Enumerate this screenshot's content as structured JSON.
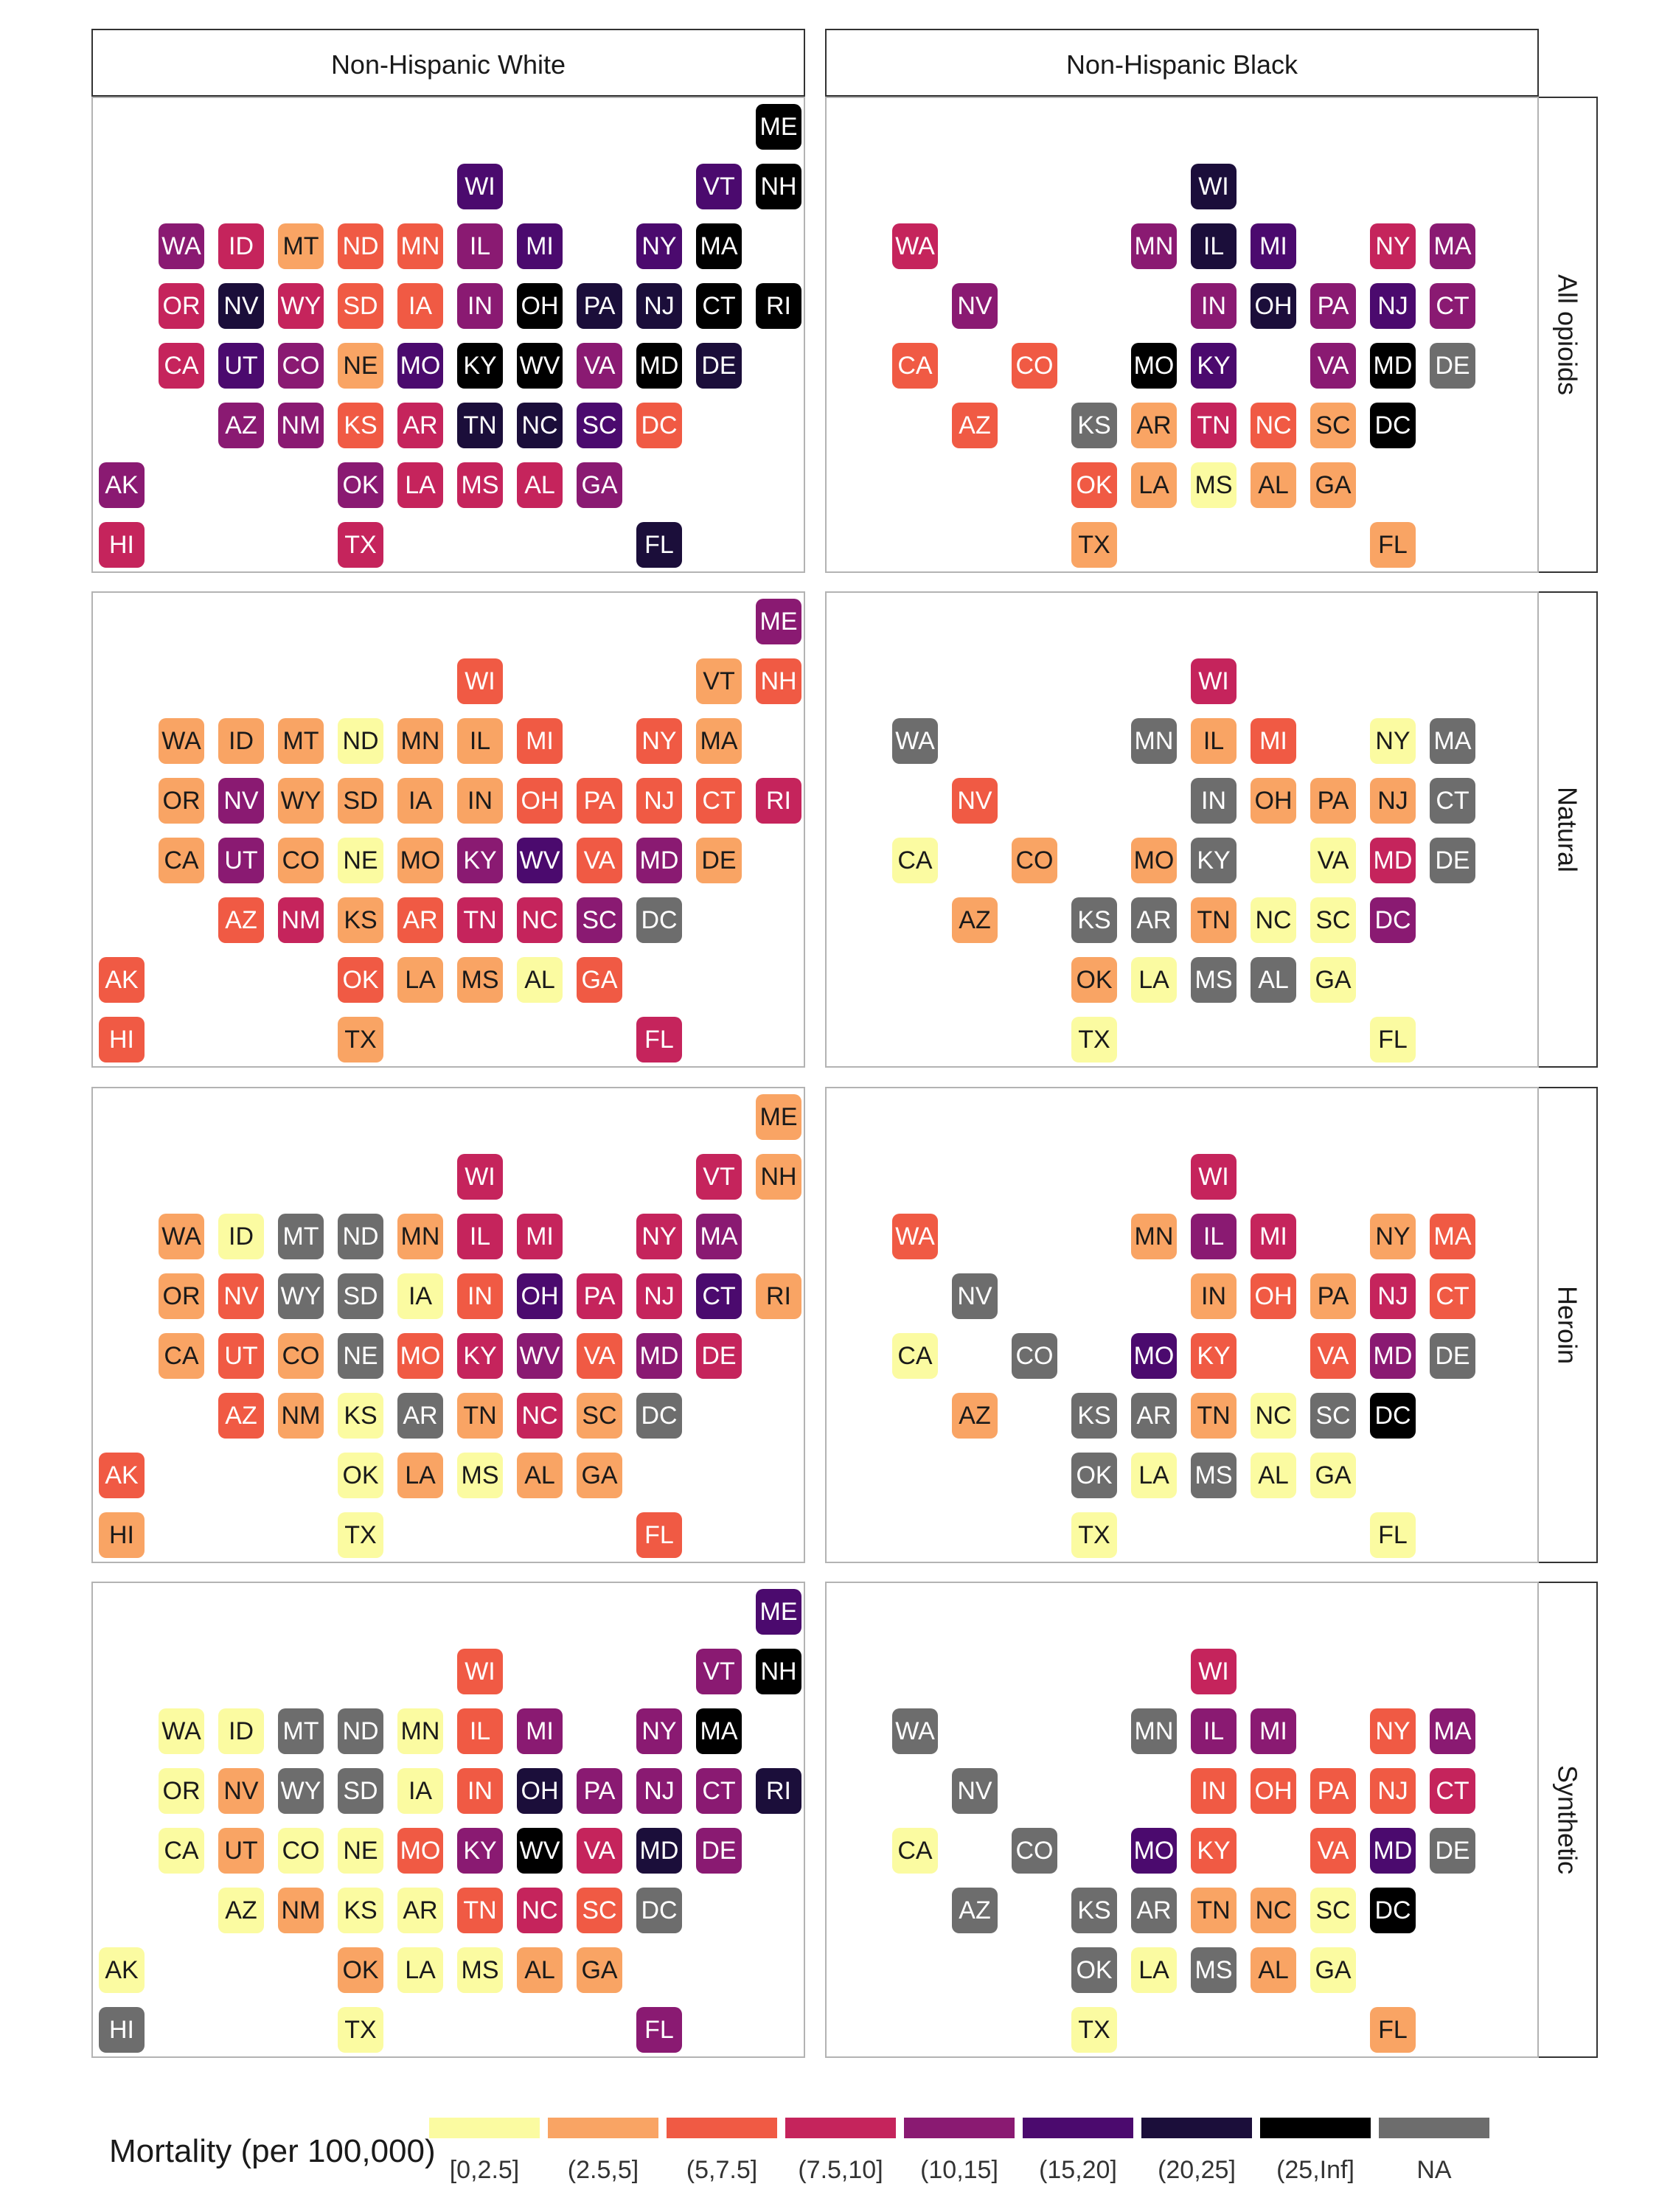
{
  "chart_data": {
    "type": "heatmap",
    "title": "",
    "columns": [
      "Non-Hispanic White",
      "Non-Hispanic Black"
    ],
    "rows": [
      "All opioids",
      "Natural",
      "Heroin",
      "Synthetic"
    ],
    "legend": {
      "title": "Mortality (per 100,000)",
      "placement": "bottom",
      "bins": [
        {
          "label": "[0,2.5]",
          "color": "#FBFBA1"
        },
        {
          "label": "(2.5,5]",
          "color": "#F9A464"
        },
        {
          "label": "(5,7.5]",
          "color": "#F05A44"
        },
        {
          "label": "(7.5,10]",
          "color": "#C5245C"
        },
        {
          "label": "(10,15]",
          "color": "#8A1A72"
        },
        {
          "label": "(15,20]",
          "color": "#4B0A6E"
        },
        {
          "label": "(20,25]",
          "color": "#1B0E3A"
        },
        {
          "label": "(25,Inf]",
          "color": "#000000"
        },
        {
          "label": "NA",
          "color": "#6D6D6D"
        }
      ]
    },
    "states": [
      "ME",
      "WI",
      "VT",
      "NH",
      "WA",
      "ID",
      "MT",
      "ND",
      "MN",
      "IL",
      "MI",
      "NY",
      "MA",
      "OR",
      "NV",
      "WY",
      "SD",
      "IA",
      "IN",
      "OH",
      "PA",
      "NJ",
      "CT",
      "RI",
      "CA",
      "UT",
      "CO",
      "NE",
      "MO",
      "KY",
      "WV",
      "VA",
      "MD",
      "DE",
      "AZ",
      "NM",
      "KS",
      "AR",
      "TN",
      "NC",
      "SC",
      "DC",
      "AK",
      "OK",
      "LA",
      "MS",
      "AL",
      "GA",
      "HI",
      "TX",
      "FL"
    ],
    "grid": {
      "ME": [
        1,
        12
      ],
      "WI": [
        2,
        7
      ],
      "VT": [
        2,
        11
      ],
      "NH": [
        2,
        12
      ],
      "WA": [
        3,
        2
      ],
      "ID": [
        3,
        3
      ],
      "MT": [
        3,
        4
      ],
      "ND": [
        3,
        5
      ],
      "MN": [
        3,
        6
      ],
      "IL": [
        3,
        7
      ],
      "MI": [
        3,
        8
      ],
      "NY": [
        3,
        10
      ],
      "MA": [
        3,
        11
      ],
      "OR": [
        4,
        2
      ],
      "NV": [
        4,
        3
      ],
      "WY": [
        4,
        4
      ],
      "SD": [
        4,
        5
      ],
      "IA": [
        4,
        6
      ],
      "IN": [
        4,
        7
      ],
      "OH": [
        4,
        8
      ],
      "PA": [
        4,
        9
      ],
      "NJ": [
        4,
        10
      ],
      "CT": [
        4,
        11
      ],
      "RI": [
        4,
        12
      ],
      "CA": [
        5,
        2
      ],
      "UT": [
        5,
        3
      ],
      "CO": [
        5,
        4
      ],
      "NE": [
        5,
        5
      ],
      "MO": [
        5,
        6
      ],
      "KY": [
        5,
        7
      ],
      "WV": [
        5,
        8
      ],
      "VA": [
        5,
        9
      ],
      "MD": [
        5,
        10
      ],
      "DE": [
        5,
        11
      ],
      "AZ": [
        6,
        3
      ],
      "NM": [
        6,
        4
      ],
      "KS": [
        6,
        5
      ],
      "AR": [
        6,
        6
      ],
      "TN": [
        6,
        7
      ],
      "NC": [
        6,
        8
      ],
      "SC": [
        6,
        9
      ],
      "DC": [
        6,
        10
      ],
      "AK": [
        7,
        1
      ],
      "OK": [
        7,
        5
      ],
      "LA": [
        7,
        6
      ],
      "MS": [
        7,
        7
      ],
      "AL": [
        7,
        8
      ],
      "GA": [
        7,
        9
      ],
      "HI": [
        8,
        1
      ],
      "TX": [
        8,
        5
      ],
      "FL": [
        8,
        10
      ]
    },
    "panels": [
      {
        "row": "All opioids",
        "column": "Non-Hispanic White",
        "values": {
          "ME": "(25,Inf]",
          "WI": "(15,20]",
          "VT": "(15,20]",
          "NH": "(25,Inf]",
          "WA": "(10,15]",
          "ID": "(7.5,10]",
          "MT": "(2.5,5]",
          "ND": "(5,7.5]",
          "MN": "(5,7.5]",
          "IL": "(10,15]",
          "MI": "(15,20]",
          "NY": "(15,20]",
          "MA": "(25,Inf]",
          "OR": "(7.5,10]",
          "NV": "(20,25]",
          "WY": "(7.5,10]",
          "SD": "(5,7.5]",
          "IA": "(5,7.5]",
          "IN": "(10,15]",
          "OH": "(25,Inf]",
          "PA": "(20,25]",
          "NJ": "(20,25]",
          "CT": "(25,Inf]",
          "RI": "(25,Inf]",
          "CA": "(7.5,10]",
          "UT": "(15,20]",
          "CO": "(10,15]",
          "NE": "(2.5,5]",
          "MO": "(15,20]",
          "KY": "(25,Inf]",
          "WV": "(25,Inf]",
          "VA": "(10,15]",
          "MD": "(25,Inf]",
          "DE": "(20,25]",
          "AZ": "(10,15]",
          "NM": "(10,15]",
          "KS": "(5,7.5]",
          "AR": "(7.5,10]",
          "TN": "(20,25]",
          "NC": "(20,25]",
          "SC": "(15,20]",
          "DC": "(5,7.5]",
          "AK": "(10,15]",
          "OK": "(10,15]",
          "LA": "(7.5,10]",
          "MS": "(7.5,10]",
          "AL": "(7.5,10]",
          "GA": "(10,15]",
          "HI": "(7.5,10]",
          "TX": "(7.5,10]",
          "FL": "(20,25]"
        }
      },
      {
        "row": "All opioids",
        "column": "Non-Hispanic Black",
        "values": {
          "WI": "(20,25]",
          "WA": "(7.5,10]",
          "MN": "(10,15]",
          "IL": "(20,25]",
          "MI": "(15,20]",
          "NY": "(7.5,10]",
          "MA": "(10,15]",
          "NV": "(10,15]",
          "IN": "(10,15]",
          "OH": "(20,25]",
          "PA": "(10,15]",
          "NJ": "(15,20]",
          "CT": "(10,15]",
          "CA": "(5,7.5]",
          "CO": "(5,7.5]",
          "MO": "(25,Inf]",
          "KY": "(15,20]",
          "VA": "(10,15]",
          "MD": "(25,Inf]",
          "DE": "NA",
          "AZ": "(5,7.5]",
          "KS": "NA",
          "AR": "(2.5,5]",
          "TN": "(7.5,10]",
          "NC": "(5,7.5]",
          "SC": "(2.5,5]",
          "DC": "(25,Inf]",
          "OK": "(5,7.5]",
          "LA": "(2.5,5]",
          "MS": "[0,2.5]",
          "AL": "(2.5,5]",
          "GA": "(2.5,5]",
          "TX": "(2.5,5]",
          "FL": "(2.5,5]"
        }
      },
      {
        "row": "Natural",
        "column": "Non-Hispanic White",
        "values": {
          "ME": "(10,15]",
          "WI": "(5,7.5]",
          "VT": "(2.5,5]",
          "NH": "(5,7.5]",
          "WA": "(2.5,5]",
          "ID": "(2.5,5]",
          "MT": "(2.5,5]",
          "ND": "[0,2.5]",
          "MN": "(2.5,5]",
          "IL": "(2.5,5]",
          "MI": "(5,7.5]",
          "NY": "(5,7.5]",
          "MA": "(2.5,5]",
          "OR": "(2.5,5]",
          "NV": "(10,15]",
          "WY": "(2.5,5]",
          "SD": "(2.5,5]",
          "IA": "(2.5,5]",
          "IN": "(2.5,5]",
          "OH": "(5,7.5]",
          "PA": "(5,7.5]",
          "NJ": "(5,7.5]",
          "CT": "(5,7.5]",
          "RI": "(7.5,10]",
          "CA": "(2.5,5]",
          "UT": "(10,15]",
          "CO": "(2.5,5]",
          "NE": "[0,2.5]",
          "MO": "(2.5,5]",
          "KY": "(10,15]",
          "WV": "(15,20]",
          "VA": "(5,7.5]",
          "MD": "(10,15]",
          "DE": "(2.5,5]",
          "AZ": "(5,7.5]",
          "NM": "(7.5,10]",
          "KS": "(2.5,5]",
          "AR": "(5,7.5]",
          "TN": "(7.5,10]",
          "NC": "(7.5,10]",
          "SC": "(10,15]",
          "DC": "NA",
          "AK": "(5,7.5]",
          "OK": "(5,7.5]",
          "LA": "(2.5,5]",
          "MS": "(2.5,5]",
          "AL": "[0,2.5]",
          "GA": "(5,7.5]",
          "HI": "(5,7.5]",
          "TX": "(2.5,5]",
          "FL": "(7.5,10]"
        }
      },
      {
        "row": "Natural",
        "column": "Non-Hispanic Black",
        "values": {
          "WI": "(7.5,10]",
          "WA": "NA",
          "MN": "NA",
          "IL": "(2.5,5]",
          "MI": "(5,7.5]",
          "NY": "[0,2.5]",
          "MA": "NA",
          "NV": "(5,7.5]",
          "IN": "NA",
          "OH": "(2.5,5]",
          "PA": "(2.5,5]",
          "NJ": "(2.5,5]",
          "CT": "NA",
          "CA": "[0,2.5]",
          "CO": "(2.5,5]",
          "MO": "(2.5,5]",
          "KY": "NA",
          "VA": "[0,2.5]",
          "MD": "(7.5,10]",
          "DE": "NA",
          "AZ": "(2.5,5]",
          "KS": "NA",
          "AR": "NA",
          "TN": "(2.5,5]",
          "NC": "[0,2.5]",
          "SC": "[0,2.5]",
          "DC": "(10,15]",
          "OK": "(2.5,5]",
          "LA": "[0,2.5]",
          "MS": "NA",
          "AL": "NA",
          "GA": "[0,2.5]",
          "TX": "[0,2.5]",
          "FL": "[0,2.5]"
        }
      },
      {
        "row": "Heroin",
        "column": "Non-Hispanic White",
        "values": {
          "ME": "(2.5,5]",
          "WI": "(7.5,10]",
          "VT": "(7.5,10]",
          "NH": "(2.5,5]",
          "WA": "(2.5,5]",
          "ID": "[0,2.5]",
          "MT": "NA",
          "ND": "NA",
          "MN": "(2.5,5]",
          "IL": "(7.5,10]",
          "MI": "(7.5,10]",
          "NY": "(7.5,10]",
          "MA": "(10,15]",
          "OR": "(2.5,5]",
          "NV": "(5,7.5]",
          "WY": "NA",
          "SD": "NA",
          "IA": "[0,2.5]",
          "IN": "(5,7.5]",
          "OH": "(15,20]",
          "PA": "(7.5,10]",
          "NJ": "(7.5,10]",
          "CT": "(15,20]",
          "RI": "(2.5,5]",
          "CA": "(2.5,5]",
          "UT": "(5,7.5]",
          "CO": "(2.5,5]",
          "NE": "NA",
          "MO": "(5,7.5]",
          "KY": "(7.5,10]",
          "WV": "(10,15]",
          "VA": "(5,7.5]",
          "MD": "(10,15]",
          "DE": "(7.5,10]",
          "AZ": "(5,7.5]",
          "NM": "(2.5,5]",
          "KS": "[0,2.5]",
          "AR": "NA",
          "TN": "(2.5,5]",
          "NC": "(7.5,10]",
          "SC": "(2.5,5]",
          "DC": "NA",
          "AK": "(5,7.5]",
          "OK": "[0,2.5]",
          "LA": "(2.5,5]",
          "MS": "[0,2.5]",
          "AL": "(2.5,5]",
          "GA": "(2.5,5]",
          "HI": "(2.5,5]",
          "TX": "[0,2.5]",
          "FL": "(5,7.5]"
        }
      },
      {
        "row": "Heroin",
        "column": "Non-Hispanic Black",
        "values": {
          "WI": "(7.5,10]",
          "WA": "(5,7.5]",
          "MN": "(2.5,5]",
          "IL": "(10,15]",
          "MI": "(7.5,10]",
          "NY": "(2.5,5]",
          "MA": "(5,7.5]",
          "NV": "NA",
          "IN": "(2.5,5]",
          "OH": "(5,7.5]",
          "PA": "(2.5,5]",
          "NJ": "(7.5,10]",
          "CT": "(5,7.5]",
          "CA": "[0,2.5]",
          "CO": "NA",
          "MO": "(15,20]",
          "KY": "(5,7.5]",
          "VA": "(5,7.5]",
          "MD": "(10,15]",
          "DE": "NA",
          "AZ": "(2.5,5]",
          "KS": "NA",
          "AR": "NA",
          "TN": "(2.5,5]",
          "NC": "[0,2.5]",
          "SC": "NA",
          "DC": "(25,Inf]",
          "OK": "NA",
          "LA": "[0,2.5]",
          "MS": "NA",
          "AL": "[0,2.5]",
          "GA": "[0,2.5]",
          "TX": "[0,2.5]",
          "FL": "[0,2.5]"
        }
      },
      {
        "row": "Synthetic",
        "column": "Non-Hispanic White",
        "values": {
          "ME": "(15,20]",
          "WI": "(5,7.5]",
          "VT": "(10,15]",
          "NH": "(25,Inf]",
          "WA": "[0,2.5]",
          "ID": "[0,2.5]",
          "MT": "NA",
          "ND": "NA",
          "MN": "[0,2.5]",
          "IL": "(5,7.5]",
          "MI": "(10,15]",
          "NY": "(10,15]",
          "MA": "(25,Inf]",
          "OR": "[0,2.5]",
          "NV": "(2.5,5]",
          "WY": "NA",
          "SD": "NA",
          "IA": "[0,2.5]",
          "IN": "(5,7.5]",
          "OH": "(20,25]",
          "PA": "(10,15]",
          "NJ": "(10,15]",
          "CT": "(10,15]",
          "RI": "(20,25]",
          "CA": "[0,2.5]",
          "UT": "(2.5,5]",
          "CO": "[0,2.5]",
          "NE": "[0,2.5]",
          "MO": "(5,7.5]",
          "KY": "(10,15]",
          "WV": "(25,Inf]",
          "VA": "(7.5,10]",
          "MD": "(20,25]",
          "DE": "(10,15]",
          "AZ": "[0,2.5]",
          "NM": "(2.5,5]",
          "KS": "[0,2.5]",
          "AR": "[0,2.5]",
          "TN": "(5,7.5]",
          "NC": "(7.5,10]",
          "SC": "(5,7.5]",
          "DC": "NA",
          "AK": "[0,2.5]",
          "OK": "(2.5,5]",
          "LA": "[0,2.5]",
          "MS": "[0,2.5]",
          "AL": "(2.5,5]",
          "GA": "(2.5,5]",
          "HI": "NA",
          "TX": "[0,2.5]",
          "FL": "(10,15]"
        }
      },
      {
        "row": "Synthetic",
        "column": "Non-Hispanic Black",
        "values": {
          "WI": "(7.5,10]",
          "WA": "NA",
          "MN": "NA",
          "IL": "(10,15]",
          "MI": "(10,15]",
          "NY": "(5,7.5]",
          "MA": "(10,15]",
          "NV": "NA",
          "IN": "(5,7.5]",
          "OH": "(5,7.5]",
          "PA": "(5,7.5]",
          "NJ": "(5,7.5]",
          "CT": "(7.5,10]",
          "CA": "[0,2.5]",
          "CO": "NA",
          "MO": "(15,20]",
          "KY": "(5,7.5]",
          "VA": "(5,7.5]",
          "MD": "(15,20]",
          "DE": "NA",
          "AZ": "NA",
          "KS": "NA",
          "AR": "NA",
          "TN": "(2.5,5]",
          "NC": "(2.5,5]",
          "SC": "[0,2.5]",
          "DC": "(25,Inf]",
          "OK": "NA",
          "LA": "[0,2.5]",
          "MS": "NA",
          "AL": "(2.5,5]",
          "GA": "[0,2.5]",
          "TX": "[0,2.5]",
          "FL": "(2.5,5]"
        }
      }
    ]
  }
}
